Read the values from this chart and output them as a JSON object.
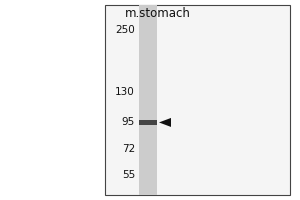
{
  "background_color": "#ffffff",
  "panel_bg": "#ffffff",
  "panel_color": "#e8e8e8",
  "lane_color": "#cccccc",
  "band_color": "#444444",
  "arrow_color": "#111111",
  "title": "m.stomach",
  "title_fontsize": 8.5,
  "mw_markers": [
    250,
    130,
    95,
    72,
    55
  ],
  "band_mw": 95,
  "fig_width": 3.0,
  "fig_height": 2.0,
  "border_color": "#444444"
}
